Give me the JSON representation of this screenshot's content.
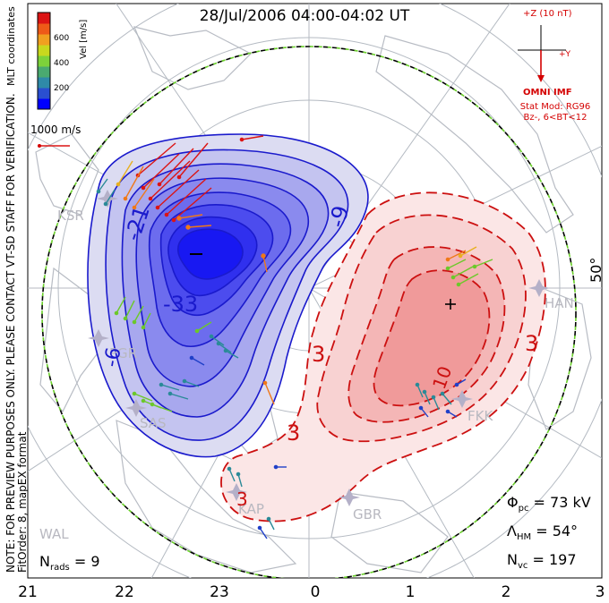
{
  "title": "28/Jul/2006 04:00-04:02 UT",
  "side_note": {
    "line1": "NOTE: FOR PREVIEW PURPOSES ONLY. PLEASE CONTACT VT-SD STAFF FOR VERIFICATION.",
    "line2": "FitOrder: 8, mapEX format"
  },
  "color_bar": {
    "title": "Vel [m/s]",
    "ticks": [
      "600",
      "400",
      "200"
    ],
    "colors": [
      "#0000ff",
      "#2a4fd0",
      "#2f8aa8",
      "#4aaa70",
      "#7dd23a",
      "#c8d81e",
      "#f0a020",
      "#ee5a18",
      "#dc1414"
    ],
    "mode": "MLT coordinates"
  },
  "reference_vector": {
    "label": "1000 m/s",
    "color": "#d40000"
  },
  "imf": {
    "label": "+Z (10 nT)",
    "y_label": "+Y",
    "source": "OMNI IMF",
    "model_line1": "Stat Mod: RG96",
    "model_line2": "Bz-, 6<BT<12",
    "color": "#d40000"
  },
  "stations": [
    "KSR",
    "PGR",
    "SAS",
    "KAP",
    "GBR",
    "FKK",
    "HAN",
    "WAL"
  ],
  "contour_labels_negative": [
    "-21",
    "-9",
    "-33",
    "-6"
  ],
  "contour_labels_positive": [
    "3",
    "3",
    "3",
    "10",
    "3"
  ],
  "center_markers": {
    "min": "–",
    "max": "+"
  },
  "latitude_label": "50°",
  "stats": {
    "phi_symbol": "Φ",
    "phi_sub": "pc",
    "phi_value": " = 73 kV",
    "lambda_symbol": "Λ",
    "lambda_sub": "HM",
    "lambda_value": " = 54°",
    "nvc_symbol": "N",
    "nvc_sub": "vc",
    "nvc_value": " = 197",
    "nrads_symbol": "N",
    "nrads_sub": "rads",
    "nrads_value": " = 9"
  },
  "mlt_ticks": [
    "21",
    "22",
    "23",
    "0",
    "1",
    "2",
    "3"
  ],
  "colors": {
    "negative": "#1a1acc",
    "negative_fill": "#3a3aee",
    "positive": "#cc1010",
    "positive_fill": "#f4a8a8",
    "boundary": "#000000",
    "grid": "#b4bac2"
  }
}
